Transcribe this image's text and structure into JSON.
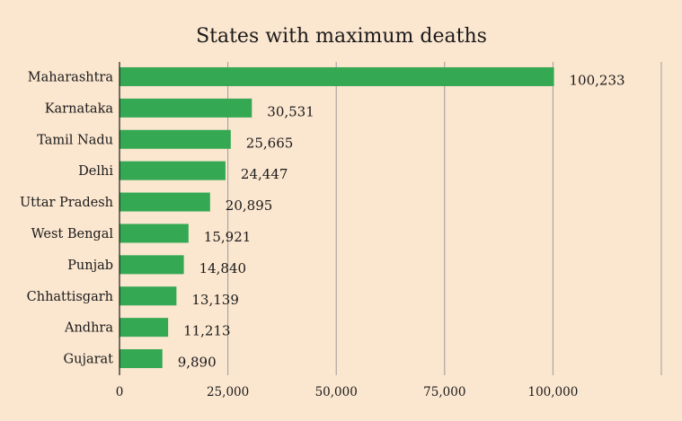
{
  "chart_data": {
    "type": "bar",
    "orientation": "horizontal",
    "title": "States with maximum deaths",
    "categories": [
      "Maharashtra",
      "Karnataka",
      "Tamil Nadu",
      "Delhi",
      "Uttar Pradesh",
      "West Bengal",
      "Punjab",
      "Chhattisgarh",
      "Andhra",
      "Gujarat"
    ],
    "values": [
      100233,
      30531,
      25665,
      24447,
      20895,
      15921,
      14840,
      13139,
      11213,
      9890
    ],
    "value_labels": [
      "100,233",
      "30,531",
      "25,665",
      "24,447",
      "20,895",
      "15,921",
      "14,840",
      "13,139",
      "11,213",
      "9,890"
    ],
    "xlim": [
      0,
      125000
    ],
    "xticks": [
      0,
      25000,
      50000,
      75000,
      100000
    ],
    "xtick_labels": [
      "0",
      "25,000",
      "50,000",
      "75,000",
      "100,000"
    ],
    "xlabel": "",
    "ylabel": "",
    "grid": "vertical",
    "legend": "none",
    "colors": {
      "bar": "#34a853",
      "background": "#fbe6cf"
    }
  }
}
